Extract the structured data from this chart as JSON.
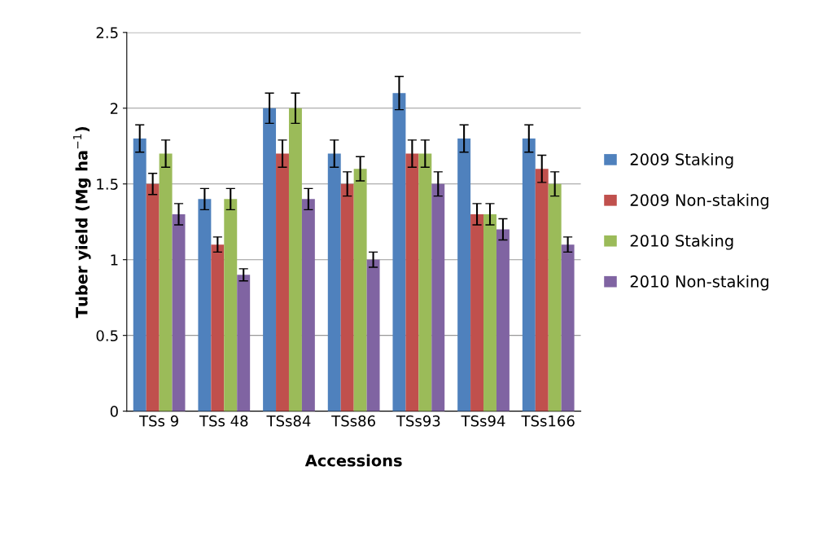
{
  "chart_data": {
    "type": "bar",
    "xlabel": "Accessions",
    "ylabel": "Tuber yield (Mg ha$^{−1}$)",
    "categories": [
      "TSs 9",
      "TSs 48",
      "TSs84",
      "TSs86",
      "TSs93",
      "TSs94",
      "TSs166"
    ],
    "series": [
      {
        "name": "2009 Staking",
        "color": "#4f81bd",
        "values": [
          1.8,
          1.4,
          2.0,
          1.7,
          2.1,
          1.8,
          1.8
        ],
        "errors": [
          0.09,
          0.07,
          0.1,
          0.09,
          0.11,
          0.09,
          0.09
        ]
      },
      {
        "name": "2009 Non-staking",
        "color": "#c0504d",
        "values": [
          1.5,
          1.1,
          1.7,
          1.5,
          1.7,
          1.3,
          1.6
        ],
        "errors": [
          0.07,
          0.05,
          0.09,
          0.08,
          0.09,
          0.07,
          0.09
        ]
      },
      {
        "name": "2010 Staking",
        "color": "#9bbb59",
        "values": [
          1.7,
          1.4,
          2.0,
          1.6,
          1.7,
          1.3,
          1.5
        ],
        "errors": [
          0.09,
          0.07,
          0.1,
          0.08,
          0.09,
          0.07,
          0.08
        ]
      },
      {
        "name": "2010 Non-staking",
        "color": "#8064a2",
        "values": [
          1.3,
          0.9,
          1.4,
          1.0,
          1.5,
          1.2,
          1.1
        ],
        "errors": [
          0.07,
          0.04,
          0.07,
          0.05,
          0.08,
          0.07,
          0.05
        ]
      }
    ],
    "ylim": [
      0,
      2.5
    ],
    "yticks": [
      0,
      0.5,
      1,
      1.5,
      2,
      2.5
    ],
    "grid": "y",
    "legend": "right"
  }
}
